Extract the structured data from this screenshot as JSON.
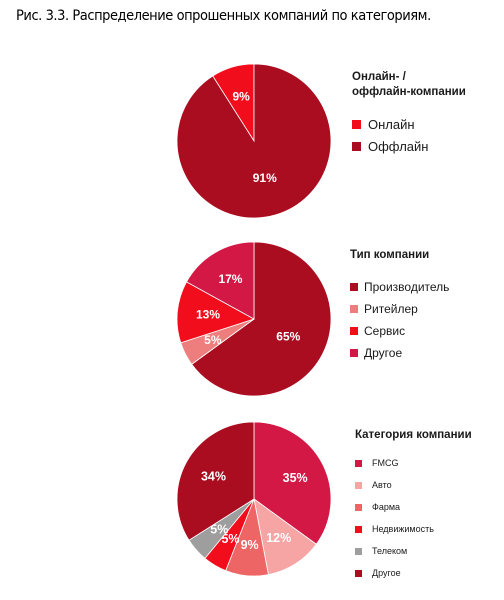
{
  "figure": {
    "caption": "Рис. 3.3.  Распределение опрошенных компаний по категориям."
  },
  "chart_data": [
    {
      "type": "pie",
      "title_lines": [
        "Онлайн- /",
        "оффлайн-компании"
      ],
      "slices": [
        {
          "name": "Онлайн",
          "value": 9,
          "label": "9%",
          "color": "#f20d1c"
        },
        {
          "name": "Оффлайн",
          "value": 91,
          "label": "91%",
          "color": "#ab0d20"
        }
      ],
      "start_angle": 0,
      "direction": "counterclockwise"
    },
    {
      "type": "pie",
      "title_lines": [
        "Тип компании"
      ],
      "slices": [
        {
          "name": "Производитель",
          "value": 65,
          "label": "65%",
          "color": "#ab0d20"
        },
        {
          "name": "Ритейлер",
          "value": 5,
          "label": "5%",
          "color": "#ee7e7e"
        },
        {
          "name": "Сервис",
          "value": 13,
          "label": "13%",
          "color": "#f20d1c"
        },
        {
          "name": "Другое",
          "value": 17,
          "label": "17%",
          "color": "#d31845"
        }
      ],
      "start_angle": 0,
      "direction": "clockwise"
    },
    {
      "type": "pie",
      "title_lines": [
        "Категория компании"
      ],
      "slices": [
        {
          "name": "FMCG",
          "value": 35,
          "label": "35%",
          "color": "#d31845"
        },
        {
          "name": "Авто",
          "value": 12,
          "label": "12%",
          "color": "#f7a4a4"
        },
        {
          "name": "Фарма",
          "value": 9,
          "label": "9%",
          "color": "#ee6565"
        },
        {
          "name": "Недвижимость",
          "value": 5,
          "label": "5%",
          "color": "#f20d1c"
        },
        {
          "name": "Телеком",
          "value": 5,
          "label": "5%",
          "color": "#9e9e9e"
        },
        {
          "name": "Другое",
          "value": 34,
          "label": "34%",
          "color": "#ab0d20"
        }
      ],
      "start_angle": 0,
      "direction": "clockwise"
    }
  ]
}
